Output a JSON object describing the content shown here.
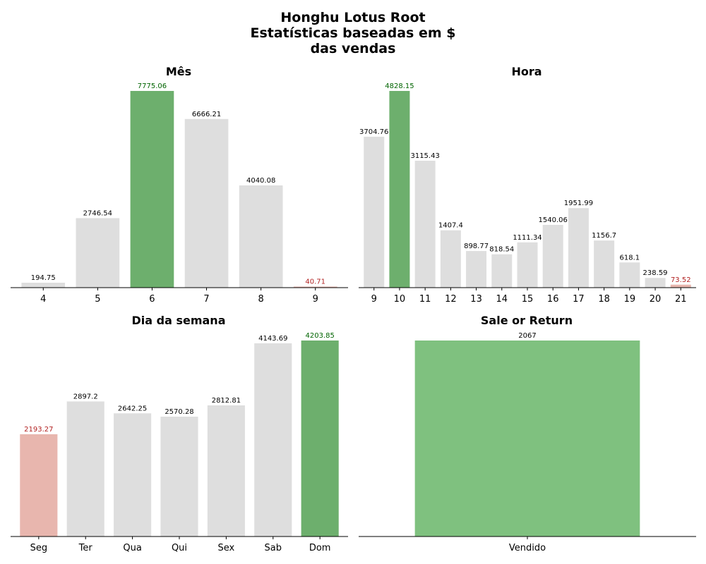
{
  "figure": {
    "title_lines": [
      "Honghu Lotus Root",
      "Estatísticas baseadas em $",
      "das vendas"
    ]
  },
  "colors": {
    "max": "#6daf6d",
    "min": "#e8b6ae",
    "default": "#dedede",
    "max_label": "#006400",
    "min_label": "#b22222",
    "default_label": "#000000",
    "single": "#7fc17f",
    "axis": "#000000"
  },
  "chart_data": [
    {
      "type": "bar",
      "title": "Mês",
      "categories": [
        "4",
        "5",
        "6",
        "7",
        "8",
        "9"
      ],
      "values": [
        194.75,
        2746.54,
        7775.06,
        6666.21,
        4040.08,
        40.71
      ],
      "labels": [
        "194.75",
        "2746.54",
        "7775.06",
        "6666.21",
        "4040.08",
        "40.71"
      ],
      "ylim": [
        0,
        7775.06
      ],
      "grid": false,
      "highlight": "max-min"
    },
    {
      "type": "bar",
      "title": "Hora",
      "categories": [
        "9",
        "10",
        "11",
        "12",
        "13",
        "14",
        "15",
        "16",
        "17",
        "18",
        "19",
        "20",
        "21"
      ],
      "values": [
        3704.76,
        4828.15,
        3115.43,
        1407.4,
        898.77,
        818.54,
        1111.34,
        1540.06,
        1951.99,
        1156.7,
        618.1,
        238.59,
        73.52
      ],
      "labels": [
        "3704.76",
        "4828.15",
        "3115.43",
        "1407.4",
        "898.77",
        "818.54",
        "1111.34",
        "1540.06",
        "1951.99",
        "1156.7",
        "618.1",
        "238.59",
        "73.52"
      ],
      "ylim": [
        0,
        4828.15
      ],
      "grid": false,
      "highlight": "max-min"
    },
    {
      "type": "bar",
      "title": "Dia da semana",
      "categories": [
        "Seg",
        "Ter",
        "Qua",
        "Qui",
        "Sex",
        "Sab",
        "Dom"
      ],
      "values": [
        2193.27,
        2897.2,
        2642.25,
        2570.28,
        2812.81,
        4143.69,
        4203.85
      ],
      "labels": [
        "2193.27",
        "2897.2",
        "2642.25",
        "2570.28",
        "2812.81",
        "4143.69",
        "4203.85"
      ],
      "ylim": [
        0,
        4203.85
      ],
      "grid": false,
      "highlight": "max-min"
    },
    {
      "type": "bar",
      "title": "Sale or Return",
      "categories": [
        "Vendido"
      ],
      "values": [
        2067
      ],
      "labels": [
        "2067"
      ],
      "ylim": [
        0,
        2067
      ],
      "grid": false,
      "highlight": "single"
    }
  ]
}
